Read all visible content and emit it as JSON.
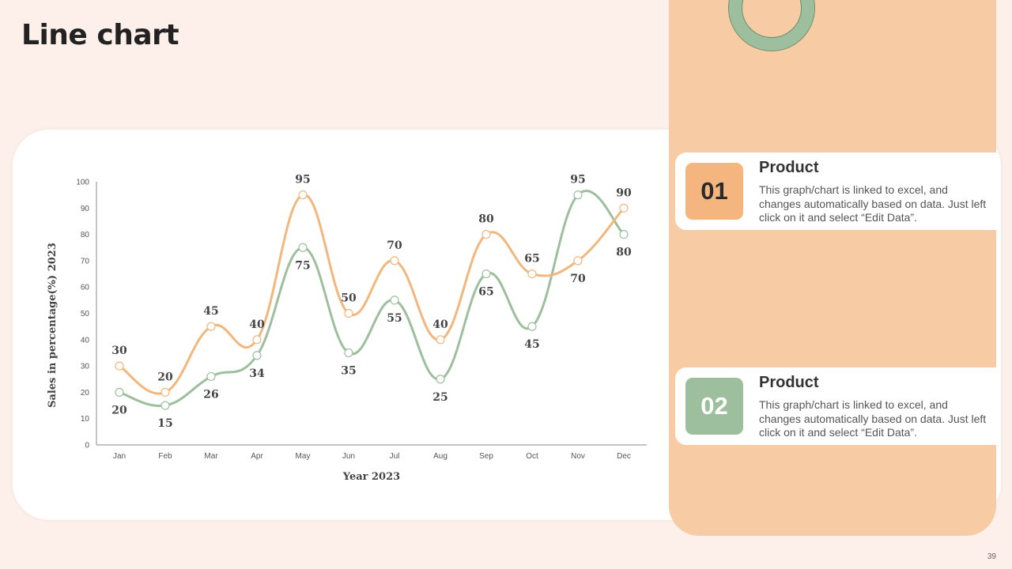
{
  "title": "Line chart",
  "page_number": "39",
  "colors": {
    "background": "#fdf0eb",
    "panel": "#f7cca4",
    "series1": "#f2b77d",
    "series2": "#9dbf9e"
  },
  "products": [
    {
      "number": "01",
      "title": "Product",
      "description": "This graph/chart is linked to excel, and changes automatically based on data. Just left click on it and select “Edit Data”."
    },
    {
      "number": "02",
      "title": "Product",
      "description": "This graph/chart is linked to excel, and changes automatically based on data. Just left click on it and select “Edit Data”."
    }
  ],
  "chart_data": {
    "type": "line",
    "smooth": true,
    "categories": [
      "Jan",
      "Feb",
      "Mar",
      "Apr",
      "May",
      "Jun",
      "Jul",
      "Aug",
      "Sep",
      "Oct",
      "Nov",
      "Dec"
    ],
    "series": [
      {
        "values": [
          30,
          20,
          45,
          40,
          95,
          50,
          70,
          40,
          80,
          65,
          70,
          90
        ],
        "color": "#f2b77d"
      },
      {
        "values": [
          20,
          15,
          26,
          34,
          75,
          35,
          55,
          25,
          65,
          45,
          95,
          80
        ],
        "color": "#9dbf9e"
      }
    ],
    "xlabel": "Year 2023",
    "ylabel": "Sales in percentage(%) 2023",
    "ylim": [
      0,
      100
    ],
    "yticks": [
      0,
      10,
      20,
      30,
      40,
      50,
      60,
      70,
      80,
      90,
      100
    ],
    "legend": "none",
    "grid": false
  }
}
